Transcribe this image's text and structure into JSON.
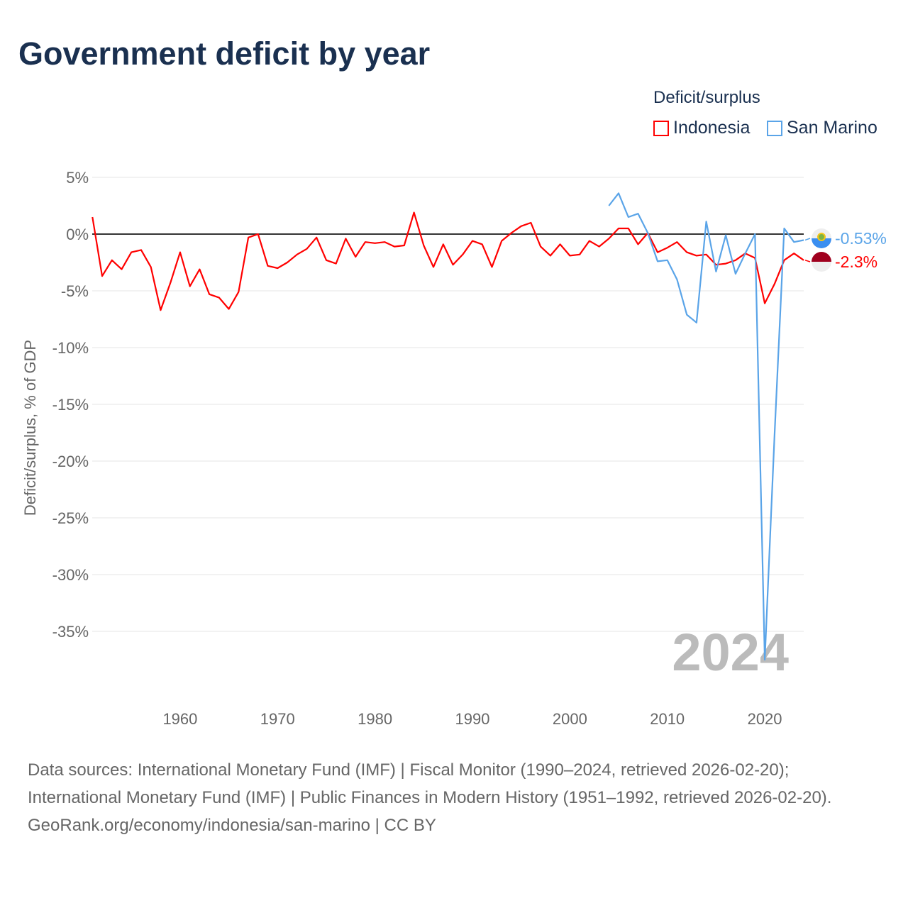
{
  "title": "Government deficit by year",
  "legend": {
    "title": "Deficit/surplus",
    "items": [
      {
        "label": "Indonesia",
        "color": "#ff0000"
      },
      {
        "label": "San Marino",
        "color": "#5aa4e8"
      }
    ]
  },
  "chart_data": {
    "type": "line",
    "title": "Government deficit by year",
    "ylabel": "Deficit/surplus, % of GDP",
    "xlabel": "",
    "xlim": [
      1951,
      2024
    ],
    "ylim": [
      -40,
      6
    ],
    "yticks": [
      5,
      0,
      -5,
      -10,
      -15,
      -20,
      -25,
      -30,
      -35
    ],
    "ytick_labels": [
      "5%",
      "0%",
      "-5%",
      "-10%",
      "-15%",
      "-20%",
      "-25%",
      "-30%",
      "-35%"
    ],
    "xticks": [
      1960,
      1970,
      1980,
      1990,
      2000,
      2010,
      2020
    ],
    "xtick_labels": [
      "1960",
      "1970",
      "1980",
      "1990",
      "2000",
      "2010",
      "2020"
    ],
    "grid": true,
    "year_watermark": "2024",
    "series": [
      {
        "name": "Indonesia",
        "color": "#ff0000",
        "end_label": "-2.3%",
        "start_year": 1951,
        "values": [
          1.5,
          -3.7,
          -2.3,
          -3.1,
          -1.6,
          -1.4,
          -2.9,
          -6.7,
          -4.3,
          -1.6,
          -4.6,
          -3.1,
          -5.3,
          -5.6,
          -6.6,
          -5.1,
          -0.3,
          0,
          -2.8,
          -3.0,
          -2.5,
          -1.8,
          -1.3,
          -0.3,
          -2.3,
          -2.6,
          -0.4,
          -2.0,
          -0.7,
          -0.8,
          -0.7,
          -1.1,
          -1.0,
          1.9,
          -1.0,
          -2.9,
          -0.9,
          -2.7,
          -1.8,
          -0.6,
          -0.9,
          -2.9,
          -0.6,
          0.1,
          0.7,
          1.0,
          -1.1,
          -1.9,
          -0.9,
          -1.9,
          -1.8,
          -0.6,
          -1.1,
          -0.4,
          0.5,
          0.5,
          -0.9,
          0.1,
          -1.6,
          -1.2,
          -0.7,
          -1.6,
          -1.9,
          -1.8,
          -2.7,
          -2.6,
          -2.3,
          -1.7,
          -2.1,
          -6.1,
          -4.4,
          -2.3,
          -1.7,
          -2.3
        ]
      },
      {
        "name": "San Marino",
        "color": "#5aa4e8",
        "end_label": "-0.53%",
        "start_year": 2004,
        "values": [
          2.5,
          3.6,
          1.5,
          1.8,
          0.1,
          -2.4,
          -2.3,
          -4.0,
          -7.1,
          -7.8,
          1.1,
          -3.3,
          -0.1,
          -3.5,
          -1.7,
          0.0,
          -37.5,
          -17.8,
          0.5,
          -0.7,
          -0.53
        ]
      }
    ]
  },
  "footer": {
    "line1": "Data sources: International Monetary Fund (IMF) | Fiscal Monitor (1990–2024, retrieved 2026-02-20); International Monetary Fund (IMF) | Public Finances in Modern History (1951–1992, retrieved 2026-02-20).",
    "line2": "GeoRank.org/economy/indonesia/san-marino | CC BY"
  }
}
